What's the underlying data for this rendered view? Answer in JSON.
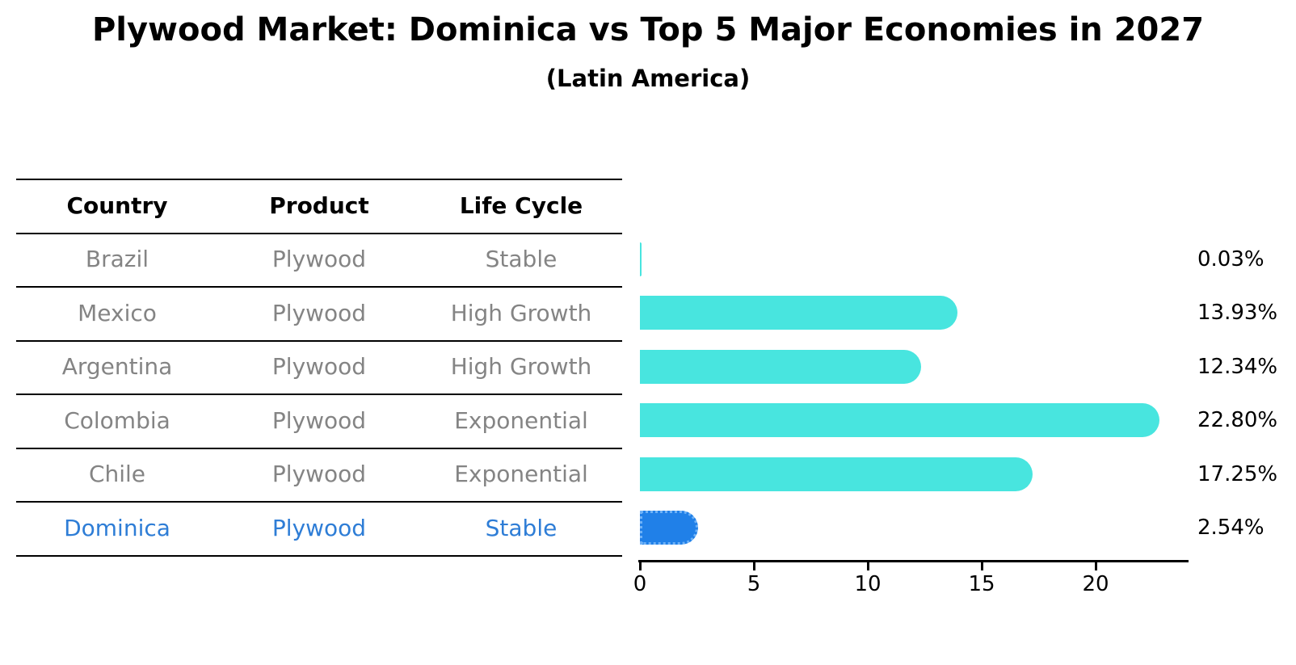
{
  "title": "Plywood Market: Dominica vs Top 5 Major Economies in 2027",
  "subtitle": "(Latin America)",
  "table": {
    "columns": [
      "Country",
      "Product",
      "Life Cycle"
    ],
    "rows": [
      {
        "country": "Brazil",
        "product": "Plywood",
        "life_cycle": "Stable",
        "highlight": false
      },
      {
        "country": "Mexico",
        "product": "Plywood",
        "life_cycle": "High Growth",
        "highlight": false
      },
      {
        "country": "Argentina",
        "product": "Plywood",
        "life_cycle": "High Growth",
        "highlight": false
      },
      {
        "country": "Colombia",
        "product": "Plywood",
        "life_cycle": "Exponential",
        "highlight": false
      },
      {
        "country": "Chile",
        "product": "Plywood",
        "life_cycle": "Exponential",
        "highlight": false
      },
      {
        "country": "Dominica",
        "product": "Plywood",
        "life_cycle": "Stable",
        "highlight": true
      }
    ]
  },
  "chart_data": {
    "type": "bar",
    "orientation": "horizontal",
    "title": "Plywood Market: Dominica vs Top 5 Major Economies in 2027",
    "subtitle": "(Latin America)",
    "categories": [
      "Brazil",
      "Mexico",
      "Argentina",
      "Colombia",
      "Chile",
      "Dominica"
    ],
    "values": [
      0.03,
      13.93,
      12.34,
      22.8,
      17.25,
      2.54
    ],
    "value_labels": [
      "0.03%",
      "13.93%",
      "12.34%",
      "22.80%",
      "17.25%",
      "2.54%"
    ],
    "xticks": [
      0,
      5,
      10,
      15,
      20
    ],
    "xlim": [
      0,
      24
    ],
    "grid": false,
    "legend": "none",
    "bar_color": "#48e5df",
    "highlight_index": 5,
    "highlight_bar_color": "#2080e8",
    "highlight_text_color": "#2e7dd6",
    "table_text_color": "#848484",
    "axis_color": "#000000"
  }
}
